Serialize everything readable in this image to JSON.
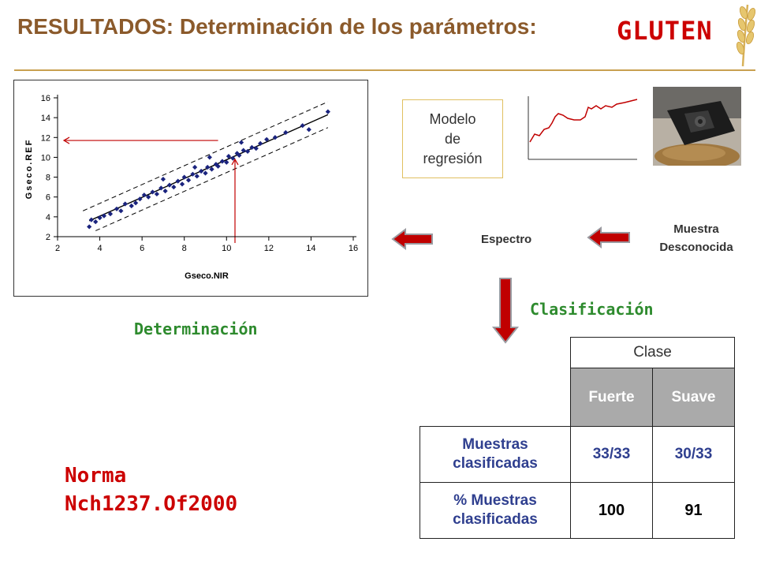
{
  "slide": {
    "title": "RESULTADOS: Determinación de los parámetros:",
    "title_highlight": "GLUTEN"
  },
  "scatter_plot": {
    "ylabel": "Gseco.REF",
    "xlabel": "Gseco.NIR",
    "x_ticks": [
      "2",
      "4",
      "6",
      "8",
      "10",
      "12",
      "14",
      "16"
    ],
    "y_ticks": [
      "2",
      "4",
      "6",
      "8",
      "10",
      "12",
      "14",
      "16"
    ]
  },
  "chart_data": {
    "type": "scatter",
    "xlabel": "Gseco.NIR",
    "ylabel": "Gseco.REF",
    "xlim": [
      2,
      16
    ],
    "ylim": [
      2,
      16
    ],
    "x_ticks": [
      2,
      4,
      6,
      8,
      10,
      12,
      14,
      16
    ],
    "y_ticks": [
      2,
      4,
      6,
      8,
      10,
      12,
      14,
      16
    ],
    "regression_line": {
      "from": [
        3.5,
        3.6
      ],
      "to": [
        14.8,
        14.3
      ]
    },
    "confidence_band_offset": 1.3,
    "points": [
      [
        3.5,
        3.0
      ],
      [
        3.6,
        3.7
      ],
      [
        3.8,
        3.5
      ],
      [
        4.0,
        3.9
      ],
      [
        4.2,
        4.1
      ],
      [
        4.5,
        4.3
      ],
      [
        4.8,
        4.8
      ],
      [
        5.0,
        4.6
      ],
      [
        5.2,
        5.3
      ],
      [
        5.5,
        5.1
      ],
      [
        5.7,
        5.4
      ],
      [
        5.9,
        5.8
      ],
      [
        6.1,
        6.2
      ],
      [
        6.3,
        6.0
      ],
      [
        6.5,
        6.5
      ],
      [
        6.7,
        6.3
      ],
      [
        6.9,
        6.9
      ],
      [
        7.1,
        6.6
      ],
      [
        7.3,
        7.2
      ],
      [
        7.5,
        7.0
      ],
      [
        7.7,
        7.6
      ],
      [
        7.9,
        7.3
      ],
      [
        8.0,
        8.0
      ],
      [
        8.2,
        7.7
      ],
      [
        8.4,
        8.3
      ],
      [
        8.6,
        8.1
      ],
      [
        8.8,
        8.6
      ],
      [
        9.0,
        8.4
      ],
      [
        9.1,
        9.0
      ],
      [
        9.3,
        8.8
      ],
      [
        9.5,
        9.3
      ],
      [
        9.6,
        9.1
      ],
      [
        9.8,
        9.6
      ],
      [
        10.0,
        9.5
      ],
      [
        10.1,
        10.1
      ],
      [
        10.3,
        9.9
      ],
      [
        10.5,
        10.4
      ],
      [
        10.6,
        10.2
      ],
      [
        10.8,
        10.7
      ],
      [
        11.0,
        10.6
      ],
      [
        11.2,
        11.0
      ],
      [
        11.4,
        10.9
      ],
      [
        11.6,
        11.4
      ],
      [
        11.9,
        11.8
      ],
      [
        12.3,
        12.0
      ],
      [
        12.8,
        12.5
      ],
      [
        13.6,
        13.2
      ],
      [
        13.9,
        12.8
      ],
      [
        14.8,
        14.6
      ],
      [
        9.2,
        10.0
      ],
      [
        8.5,
        9.0
      ],
      [
        10.7,
        11.5
      ],
      [
        7.0,
        7.8
      ]
    ],
    "reading_arrows": {
      "x_value": 10.4,
      "y_value": 11.7
    }
  },
  "labels": {
    "determinacion": "Determinación",
    "clasificacion": "Clasificación",
    "modelo": "Modelo\nde\nregresión",
    "espectro": "Espectro",
    "muestra": "Muestra Desconocida",
    "norma": "Norma",
    "norma_code": "Nch1237.Of2000"
  },
  "results_table": {
    "group_header": "Clase",
    "columns": [
      "Fuerte",
      "Suave"
    ],
    "rows": [
      {
        "label": "Muestras clasificadas",
        "values": [
          "33/33",
          "30/33"
        ]
      },
      {
        "label": "% Muestras clasificadas",
        "values": [
          "100",
          "91"
        ]
      }
    ]
  },
  "colors": {
    "title": "#8b5a2b",
    "gluten": "#cc0000",
    "green_text": "#2e8b2e",
    "table_header_bg": "#aaaaaa",
    "table_text": "#2f3f8f",
    "arrow_red": "#c00000",
    "point_blue": "#1a237e"
  },
  "icons": {
    "wheat": "wheat-icon",
    "arrow_left": "red-arrow-left-icon",
    "arrow_down": "red-arrow-down-icon"
  }
}
